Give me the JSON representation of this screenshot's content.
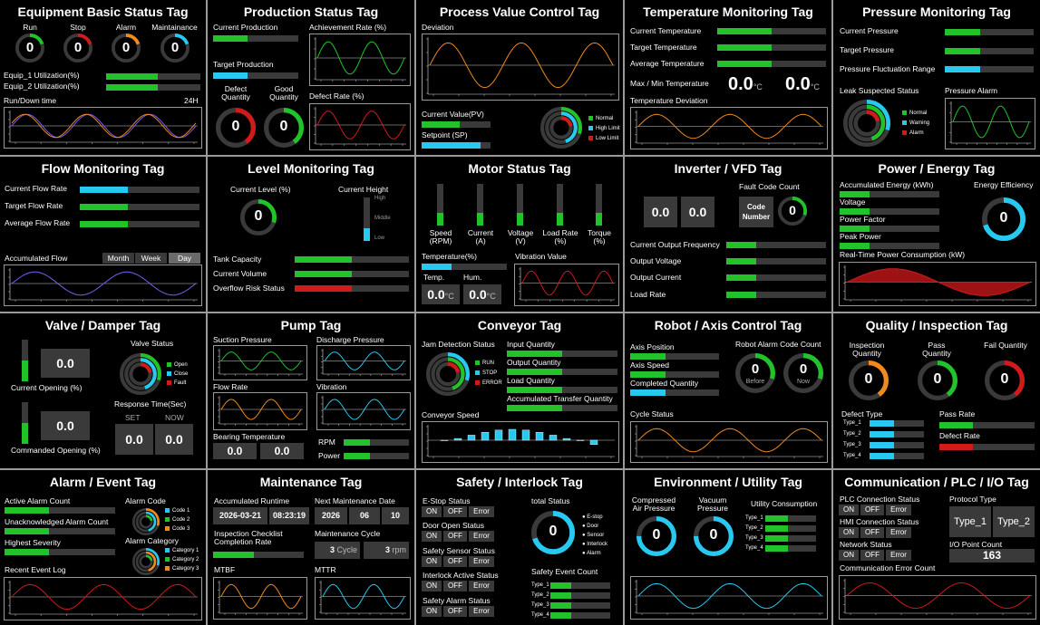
{
  "colors": {
    "green": "#22c32a",
    "cyan": "#27c9f0",
    "orange": "#f08a1c",
    "red": "#d11a1a",
    "purple": "#7b5cf0",
    "track": "#3a3a3a"
  },
  "p1": {
    "title": "Equipment Basic Status Tag",
    "gauges": [
      {
        "label": "Run",
        "value": "0",
        "color": "green"
      },
      {
        "label": "Stop",
        "value": "0",
        "color": "red"
      },
      {
        "label": "Alarm",
        "value": "0",
        "color": "orange"
      },
      {
        "label": "Maintainance",
        "value": "0",
        "color": "cyan"
      }
    ],
    "util1": "Equip_1 Utilization(%)",
    "util2": "Equip_2 Utilization(%)",
    "util1_level": 0.55,
    "util2_level": 0.55,
    "runtime": "Run/Down time",
    "runtime_range": "24H"
  },
  "p2": {
    "title": "Production Status Tag",
    "current": "Current Production",
    "target": "Target Production",
    "achievement": "Achievement Rate (%)",
    "defect_rate": "Defect Rate (%)",
    "defect_qty": "Defect Quantity",
    "good_qty": "Good Quantity",
    "defect_value": "0",
    "good_value": "0",
    "current_level": 0.4,
    "target_level": 0.4
  },
  "p3": {
    "title": "Process Value Control Tag",
    "deviation": "Deviation",
    "pv": "Current Value(PV)",
    "sp": "Setpoint (SP)",
    "legend": [
      "Normal",
      "High Limit",
      "Low Limit"
    ],
    "pv_level": 0.55,
    "sp_level": 0.85
  },
  "p4": {
    "title": "Temperature Monitoring Tag",
    "current": "Current Temperature",
    "target": "Target Temperature",
    "average": "Average Temperature",
    "maxmin": "Max / Min Temperature",
    "max_value": "0.0",
    "min_value": "0.0",
    "unit": "°C",
    "deviation": "Temperature Deviation",
    "current_level": 0.5,
    "target_level": 0.5,
    "average_level": 0.5
  },
  "p5": {
    "title": "Pressure Monitoring Tag",
    "current": "Current Pressure",
    "target": "Target Pressure",
    "fluct": "Pressure Fluctuation Range",
    "leak": "Leak Suspected Status",
    "alarm": "Pressure Alarm",
    "legend": [
      "Normal",
      "Warning",
      "Alarm"
    ],
    "current_level": 0.4,
    "target_level": 0.4,
    "fluct_level": 0.4
  },
  "p6": {
    "title": "Flow Monitoring Tag",
    "current": "Current Flow Rate",
    "target": "Target Flow Rate",
    "average": "Average Flow Rate",
    "accum": "Accumulated Flow",
    "tabs": [
      "Month",
      "Week",
      "Day"
    ],
    "current_level": 0.4,
    "target_level": 0.4,
    "average_level": 0.4
  },
  "p7": {
    "title": "Level Monitoring Tag",
    "current_level": "Current Level (%)",
    "current_height": "Current Height",
    "height_marks": [
      "High",
      "Middle",
      "Low"
    ],
    "gauge_value": "0",
    "capacity": "Tank Capacity",
    "volume": "Current Volume",
    "overflow": "Overflow Risk Status",
    "capacity_level": 0.5,
    "volume_level": 0.5,
    "overflow_level": 0.5,
    "height_level": 0.3
  },
  "p8": {
    "title": "Motor Status Tag",
    "bars": [
      {
        "label": "Speed (RPM)"
      },
      {
        "label": "Current (A)"
      },
      {
        "label": "Voltage (V)"
      },
      {
        "label": "Load Rate (%)"
      },
      {
        "label": "Torque (%)"
      }
    ],
    "bar_level": 0.3,
    "temperature": "Temperature(%)",
    "temp_level": 0.35,
    "temp": "Temp.",
    "hum": "Hum.",
    "temp_value": "0.0",
    "hum_value": "0.0",
    "unit": "°C",
    "vibration": "Vibration Value"
  },
  "p9": {
    "title": "Inverter / VFD Tag",
    "val1": "0.0",
    "val2": "0.0",
    "fault": "Fault Code Count",
    "code_number": "Code Number",
    "fault_value": "0",
    "freq": "Current Output Frequency",
    "voltage": "Output Voltage",
    "current": "Output Current",
    "load": "Load Rate",
    "bar_level": 0.3
  },
  "p10": {
    "title": "Power / Energy Tag",
    "accum": "Accumulated Energy (kWh)",
    "voltage": "Voltage",
    "pf": "Power Factor",
    "peak": "Peak Power",
    "efficiency": "Energy Efficiency",
    "eff_value": "0",
    "realtime": "Real-Time Power Consumption (kW)",
    "bar_level": 0.3
  },
  "p11": {
    "title": "Valve / Damper Tag",
    "valve_status": "Valve Status",
    "current_opening": "Current Opening (%)",
    "commanded_opening": "Commanded Opening (%)",
    "current_value": "0.0",
    "commanded_value": "0.0",
    "response": "Response Time(Sec)",
    "set": "SET",
    "now": "NOW",
    "set_value": "0.0",
    "now_value": "0.0",
    "legend": [
      "Open",
      "Close",
      "Fault"
    ],
    "current_level": 0.5,
    "commanded_level": 0.5
  },
  "p12": {
    "title": "Pump Tag",
    "suction": "Suction Pressure",
    "discharge": "Discharge Pressure",
    "flow": "Flow Rate",
    "vibration": "Vibration",
    "bearing": "Bearing Temperature",
    "bearing1": "0.0",
    "bearing2": "0.0",
    "rpm": "RPM",
    "power": "Power",
    "rpm_level": 0.4,
    "power_level": 0.4
  },
  "p13": {
    "title": "Conveyor Tag",
    "jam": "Jam Detection Status",
    "legend": [
      "RUN",
      "STOP",
      "ERROR"
    ],
    "input": "Input Quantity",
    "output": "Output Quantity",
    "load": "Load Quantity",
    "accum": "Accumulated Transfer Quantity",
    "speed": "Conveyor Speed",
    "bar_level": 0.5
  },
  "p14": {
    "title": "Robot / Axis Control Tag",
    "position": "Axis Position",
    "speed": "Axis Speed",
    "completed": "Completed Quantity",
    "alarm": "Robot Alarm Code Count",
    "before_value": "0",
    "before": "Before",
    "now_value": "0",
    "now": "Now",
    "cycle": "Cycle Status",
    "bar_level": 0.4
  },
  "p15": {
    "title": "Quality / Inspection Tag",
    "inspection": "Inspection Quantity",
    "pass": "Pass Quantity",
    "fail": "Fail Quantity",
    "inspection_value": "0",
    "pass_value": "0",
    "fail_value": "0",
    "defect_type": "Defect Type",
    "types": [
      "Type_1",
      "Type_2",
      "Type_3",
      "Type_4"
    ],
    "pass_rate": "Pass Rate",
    "defect_rate": "Defect Rate",
    "type_level": 0.45,
    "pass_rate_level": 0.35,
    "defect_rate_level": 0.35
  },
  "p16": {
    "title": "Alarm / Event Tag",
    "active": "Active Alarm Count",
    "unack": "Unacknowledged Alarm Count",
    "severity": "Highest Severity",
    "alarm_code": "Alarm Code",
    "code_legend": [
      "Code 1",
      "Code 2",
      "Code 3"
    ],
    "alarm_category": "Alarm Category",
    "cat_legend": [
      "Category 1",
      "Category 2",
      "Category 3"
    ],
    "recent": "Recent Event Log",
    "bar_level": 0.4
  },
  "p17": {
    "title": "Maintenance Tag",
    "runtime": "Accumulated Runtime",
    "next": "Next Maintenance Date",
    "date": "2026-03-21",
    "time": "08:23:19",
    "year": "2026",
    "month": "06",
    "day": "10",
    "checklist": "Inspection Checklist Completion Rate",
    "cycle": "Maintenance Cycle",
    "cycle_value": "3",
    "cycle_unit": "Cycle",
    "rpm_value": "3",
    "rpm_unit": "rpm",
    "mtbf": "MTBF",
    "mttr": "MTTR",
    "checklist_level": 0.45
  },
  "p18": {
    "title": "Safety / Interlock Tag",
    "estop": "E-Stop Status",
    "door": "Door Open Status",
    "sensor": "Safety Sensor Status",
    "interlock": "Interlock Active Status",
    "alarm": "Safety Alarm Status",
    "on": "ON",
    "off": "OFF",
    "error": "Error",
    "total": "total Status",
    "total_value": "0",
    "legend": [
      "E-stop",
      "Door",
      "Sensor",
      "Interlock",
      "Alarm"
    ],
    "event": "Safety Event Count",
    "types": [
      "Type_1",
      "Type_2",
      "Type_3",
      "Type_4"
    ],
    "type_level": 0.35
  },
  "p19": {
    "title": "Environment / Utility Tag",
    "air": "Compressed Air Pressure",
    "vacuum": "Vacuum Pressure",
    "air_value": "0",
    "vacuum_value": "0",
    "utility": "Utility Consumption",
    "types": [
      "Type_1",
      "Type_2",
      "Type_3",
      "Type_4"
    ],
    "type_level": 0.45
  },
  "p20": {
    "title": "Communication / PLC / I/O Tag",
    "plc": "PLC Connection Status",
    "hmi": "HMI Connection Status",
    "network": "Network Status",
    "on": "ON",
    "off": "OFF",
    "error": "Error",
    "protocol": "Protocol Type",
    "type1": "Type_1",
    "type2": "Type_2",
    "io": "I/O Point Count",
    "io_value": "163",
    "comm": "Communication Error Count"
  }
}
